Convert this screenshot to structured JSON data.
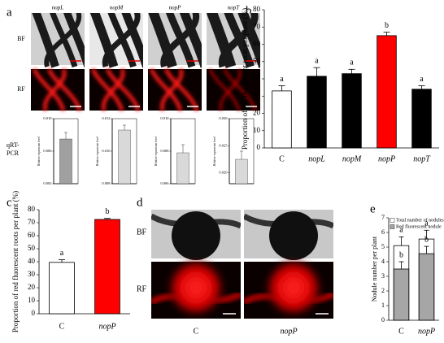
{
  "panel_labels": [
    "a",
    "b",
    "c",
    "d",
    "e"
  ],
  "panel_a": {
    "genes": [
      "nopL",
      "nopM",
      "nopP",
      "nopT"
    ],
    "rows": [
      "BF",
      "RF"
    ],
    "assay": "qRT-PCR"
  },
  "panel_d": {
    "rows": [
      "BF",
      "RF"
    ],
    "columns": [
      "C",
      "nopP"
    ]
  },
  "chart_data": [
    {
      "type": "bar",
      "ylabel": "Proportion of red fluorescent roots per plant (%)",
      "categories": [
        "C",
        "nopL",
        "nopM",
        "nopP",
        "nopT"
      ],
      "values": [
        33,
        41.5,
        43,
        65,
        34
      ],
      "errors": [
        3,
        5,
        2.5,
        2,
        2
      ],
      "annotations": [
        "a",
        "a",
        "a",
        "b",
        "a"
      ],
      "colors": [
        "#ffffff",
        "#000000",
        "#000000",
        "#ff0000",
        "#000000"
      ],
      "ylim": [
        0,
        80
      ],
      "yticks": [
        0,
        10,
        20,
        30,
        40,
        50,
        60,
        70,
        80
      ]
    },
    {
      "type": "bar",
      "ylabel": "Proportion of red fluorescent roots per plant (%)",
      "categories": [
        "C",
        "nopP"
      ],
      "values": [
        39.5,
        72.5
      ],
      "errors": [
        2,
        0.8
      ],
      "annotations": [
        "a",
        "b"
      ],
      "colors": [
        "#ffffff",
        "#ff0000"
      ],
      "ylim": [
        0,
        80
      ],
      "yticks": [
        0,
        10,
        20,
        30,
        40,
        50,
        60,
        70,
        80
      ]
    },
    {
      "type": "overlay_bar",
      "ylabel": "Nodule number per plant",
      "categories": [
        "C",
        "nopP"
      ],
      "series": [
        {
          "name": "Total number of nodules",
          "color": "#ffffff",
          "values": [
            5.1,
            5.55
          ],
          "errors": [
            0.6,
            0.6
          ],
          "annotations": [
            "a",
            "a"
          ]
        },
        {
          "name": "Red fluorescent nodule",
          "color": "#a6a6a6",
          "values": [
            3.5,
            4.55
          ],
          "errors": [
            0.5,
            0.5
          ],
          "annotations": [
            "b",
            "b"
          ]
        }
      ],
      "ylim": [
        0,
        7
      ],
      "yticks": [
        0,
        1,
        2,
        3,
        4,
        5,
        6,
        7
      ]
    },
    {
      "type": "bar",
      "ylabel": "Relative expression level",
      "values": [
        0.0075
      ],
      "errors": [
        0.0008
      ],
      "color": "#a0a0a0",
      "ylim": [
        0.002,
        0.01
      ],
      "yticks": [
        0.002,
        0.006,
        {
          "value": 0.01,
          "label": "0.010"
        }
      ]
    },
    {
      "type": "bar",
      "ylabel": "Relative expression level",
      "values": [
        0.0113
      ],
      "errors": [
        0.0003
      ],
      "color": "#d9d9d9",
      "ylim": [
        0.008,
        0.012
      ],
      "yticks": [
        0.008,
        {
          "value": 0.01,
          "label": "0.010"
        },
        0.012
      ]
    },
    {
      "type": "bar",
      "ylabel": "Relative expression level",
      "values": [
        0.0079
      ],
      "errors": [
        0.0005
      ],
      "color": "#d9d9d9",
      "ylim": [
        0.006,
        0.01
      ],
      "yticks": [
        0.006,
        0.008,
        {
          "value": 0.01,
          "label": "0.010"
        }
      ]
    },
    {
      "type": "bar",
      "ylabel": "Relative expression level",
      "values": [
        0.0225
      ],
      "errors": [
        0.0015
      ],
      "color": "#d9d9d9",
      "ylim": [
        0.018,
        0.03
      ],
      "yticks": [
        {
          "value": 0.02,
          "label": "0.020"
        },
        0.025,
        {
          "value": 0.03,
          "label": "0.030"
        }
      ]
    }
  ]
}
